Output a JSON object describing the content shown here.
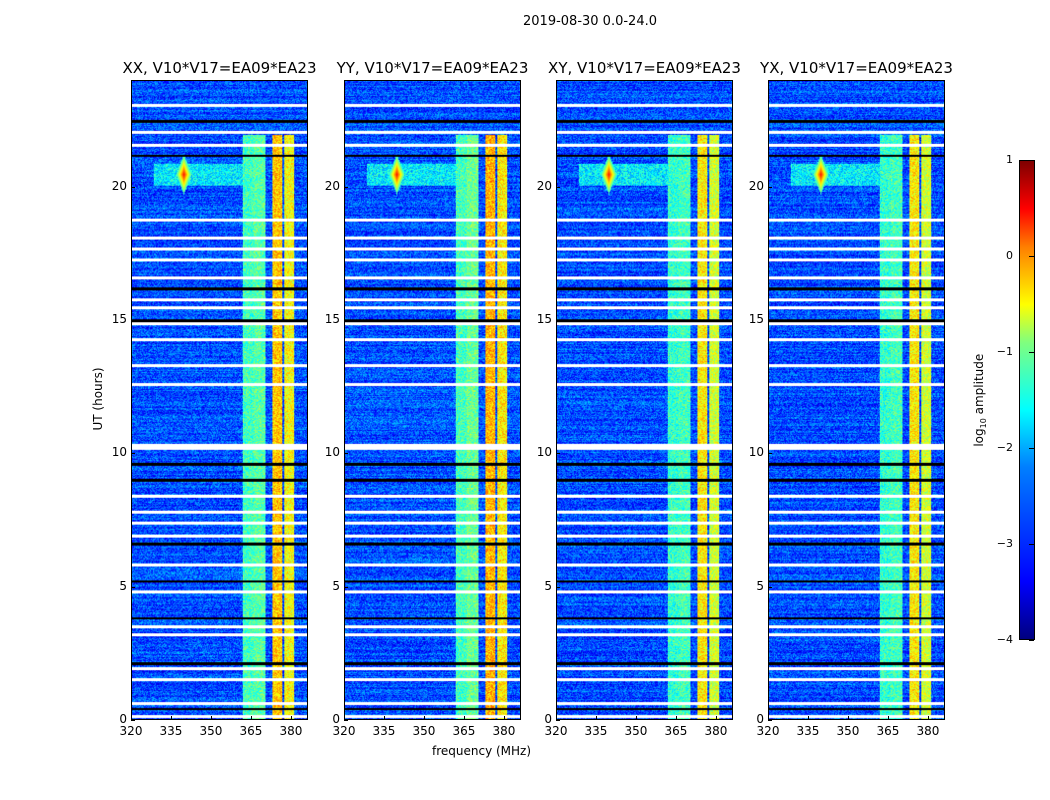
{
  "chart_data": {
    "type": "heatmap",
    "title": "2019-08-30 0.0-24.0",
    "xlabel": "frequency (MHz)",
    "ylabel": "UT (hours)",
    "xlim": [
      320,
      386.4
    ],
    "ylim": [
      0,
      24
    ],
    "xticks": [
      "320",
      "335",
      "350",
      "365",
      "380"
    ],
    "xtick_values": [
      320,
      335,
      350,
      365,
      380
    ],
    "yticks": [
      "0",
      "5",
      "10",
      "15",
      "20"
    ],
    "ytick_values": [
      0,
      5,
      10,
      15,
      20
    ],
    "panels": [
      {
        "title": "XX, V10*V17=EA09*EA23",
        "band_levels": [
          -1.8,
          -1.7,
          -0.6,
          -0.9
        ]
      },
      {
        "title": "YY, V10*V17=EA09*EA23",
        "band_levels": [
          -1.8,
          -1.6,
          -0.5,
          -0.8
        ]
      },
      {
        "title": "XY, V10*V17=EA09*EA23",
        "band_levels": [
          -1.9,
          -1.8,
          -0.8,
          -1.1
        ]
      },
      {
        "title": "YX, V10*V17=EA09*EA23",
        "band_levels": [
          -1.9,
          -1.8,
          -0.8,
          -1.1
        ]
      }
    ],
    "background_level": -3.0,
    "bright_bands_mhz": [
      [
        362,
        366
      ],
      [
        366,
        370.5
      ],
      [
        373,
        377
      ],
      [
        377.5,
        381.5
      ]
    ],
    "band_time_ranges_hours": [
      [
        0,
        22
      ]
    ],
    "rfi_spot": {
      "freq_mhz": 339.5,
      "time_hours": 20.5,
      "level": 0.3
    },
    "flagged_rows_white_hours": [
      23.1,
      22.1,
      21.6,
      18.8,
      18.1,
      17.7,
      17.3,
      16.6,
      15.8,
      15.5,
      14.9,
      14.3,
      13.3,
      12.6,
      10.3,
      10.2,
      8.4,
      7.8,
      7.4,
      6.9,
      5.8,
      4.8,
      3.5,
      3.2,
      1.9,
      1.5,
      0.6,
      0.1
    ],
    "flagged_rows_black_hours": [
      22.5,
      21.2,
      16.2,
      15.0,
      9.6,
      9.0,
      6.6,
      5.2,
      3.8,
      2.1,
      0.4
    ],
    "colorbar": {
      "label": "log10 amplitude",
      "label_main": "log",
      "label_sub": "10",
      "label_rest": " amplitude",
      "range": [
        -4,
        1
      ],
      "ticks": [
        "1",
        "0",
        "−1",
        "−2",
        "−3",
        "−4"
      ],
      "tick_values": [
        1,
        0,
        -1,
        -2,
        -3,
        -4
      ]
    }
  }
}
